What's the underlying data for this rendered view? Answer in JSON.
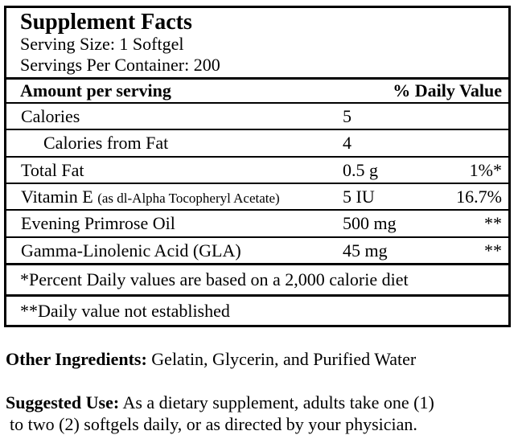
{
  "label": {
    "title": "Supplement Facts",
    "serving_size": "Serving Size: 1 Softgel",
    "servings_per_container": "Servings Per Container: 200",
    "header": {
      "amount_col": "Amount per serving",
      "dv_col": "% Daily Value"
    },
    "rows": [
      {
        "name": "Calories",
        "amount": "5",
        "daily_value": ""
      },
      {
        "name": "Calories from Fat",
        "amount": "4",
        "daily_value": ""
      },
      {
        "name": "Total Fat",
        "amount": "0.5 g",
        "daily_value": "1%*"
      },
      {
        "name": "Vitamin E",
        "name_note": "(as dl-Alpha Tocopheryl Acetate)",
        "amount": "5 IU",
        "daily_value": "16.7%"
      },
      {
        "name": "Evening Primrose Oil",
        "amount": "500 mg",
        "daily_value": "**"
      },
      {
        "name": "Gamma-Linolenic Acid (GLA)",
        "amount": "45 mg",
        "daily_value": "**"
      }
    ],
    "footnotes": [
      "*Percent Daily values are based on a 2,000 calorie diet",
      "**Daily value not established"
    ]
  },
  "other_ingredients": {
    "label": "Other Ingredients:",
    "text": "Gelatin, Glycerin, and Purified Water"
  },
  "suggested_use": {
    "label": "Suggested Use:",
    "line1": "As a dietary supplement, adults take one (1)",
    "line2": "to two (2) softgels daily, or as directed by your physician."
  },
  "colors": {
    "border": "#000000",
    "background": "#ffffff",
    "text": "#000000"
  }
}
